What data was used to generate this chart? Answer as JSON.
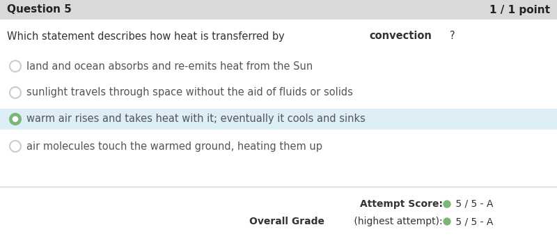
{
  "header_bg": "#d9d9d9",
  "header_text_left": "Question 5",
  "header_text_right": "1 / 1 point",
  "header_fontsize": 11,
  "body_bg": "#ffffff",
  "question_text_plain": "Which statement describes how heat is transferred by ",
  "question_text_bold": "convection",
  "question_text_end": "?",
  "question_fontsize": 10.5,
  "options": [
    "land and ocean absorbs and re-emits heat from the Sun",
    "sunlight travels through space without the aid of fluids or solids",
    "warm air rises and takes heat with it; eventually it cools and sinks",
    "air molecules touch the warmed ground, heating them up"
  ],
  "selected_index": 2,
  "selected_bg": "#ddeef7",
  "option_fontsize": 10.5,
  "radio_color_unselected": "#cccccc",
  "radio_color_selected": "#7ab87a",
  "footer_line_color": "#cccccc",
  "score_label": "Attempt Score:",
  "score_value": " 5 / 5 - A",
  "grade_label_bold": "Overall Grade",
  "grade_label_normal": " (highest attempt):",
  "grade_value": " 5 / 5 - A",
  "score_fontsize": 10,
  "dot_color": "#7ab87a"
}
